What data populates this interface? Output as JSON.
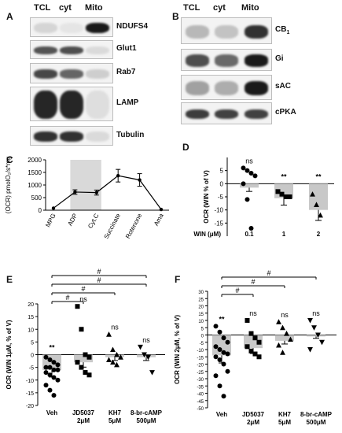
{
  "panel_labels": {
    "A": "A",
    "B": "B",
    "C": "C",
    "D": "D",
    "E": "E",
    "F": "F"
  },
  "blot_A": {
    "lanes": [
      "TCL",
      "cyt",
      "Mito"
    ],
    "proteins": [
      "NDUFS4",
      "Glut1",
      "Rab7",
      "LAMP",
      "Tubulin"
    ],
    "intensity": [
      [
        0.12,
        0.05,
        0.95
      ],
      [
        0.7,
        0.72,
        0.1
      ],
      [
        0.75,
        0.62,
        0.15
      ],
      [
        0.9,
        0.9,
        0.08
      ],
      [
        0.85,
        0.85,
        0.1
      ]
    ]
  },
  "blot_B": {
    "lanes": [
      "TCL",
      "cyt",
      "Mito"
    ],
    "proteins": [
      "CB",
      "Gi",
      "sAC",
      "cPKA"
    ],
    "sub": [
      "1",
      "",
      "",
      ""
    ],
    "intensity": [
      [
        0.25,
        0.2,
        0.85
      ],
      [
        0.72,
        0.6,
        0.95
      ],
      [
        0.35,
        0.3,
        0.95
      ],
      [
        0.8,
        0.78,
        0.78
      ]
    ]
  },
  "chart_data": [
    {
      "panel": "C",
      "type": "line",
      "ylabel": "(OCR) pmolO₂/s*mg",
      "categories": [
        "MPG",
        "ADP",
        "Cyt.C",
        "Succinate",
        "Rotenone",
        "Ama"
      ],
      "values": [
        80,
        720,
        700,
        1370,
        1200,
        30
      ],
      "errors": [
        0,
        90,
        100,
        250,
        250,
        0
      ],
      "ylim": [
        0,
        2000
      ],
      "yticks": [
        "0",
        "500",
        "1000",
        "1500",
        "2000"
      ],
      "highlight": [
        "ADP",
        "Cyt.C"
      ]
    },
    {
      "panel": "D",
      "type": "bar",
      "ylabel": "OCR (WIN % of V)",
      "xlabel": "WIN (μM)",
      "categories": [
        "0.1",
        "1",
        "2"
      ],
      "values": [
        -1.5,
        -5.5,
        -10
      ],
      "markers": [
        "circle",
        "square",
        "triangle"
      ],
      "points": [
        [
          6,
          5,
          4,
          3,
          0,
          -6,
          -17
        ],
        [
          -3,
          -4,
          -5,
          -5
        ],
        [
          -4,
          -8,
          -12
        ]
      ],
      "sig": [
        "ns",
        "**",
        "**"
      ],
      "ylim": [
        -20,
        10
      ],
      "yticks": [
        "-15",
        "-10",
        "-5",
        "0",
        "5"
      ]
    },
    {
      "panel": "E",
      "type": "bar",
      "ylabel": "OCR (WIN 1μM, % of V)",
      "categories": [
        [
          "Veh"
        ],
        [
          "JD5037",
          "2μM"
        ],
        [
          "KH7",
          "5μM"
        ],
        [
          "8-br-cAMP",
          "500μM"
        ]
      ],
      "values": [
        -6,
        -3,
        -1,
        -1
      ],
      "markers": [
        "circle",
        "square",
        "triangle",
        "triangle-down"
      ],
      "points": [
        [
          -1,
          -2,
          -3,
          -4,
          -5,
          -5,
          -6,
          -6,
          -7,
          -8,
          -9,
          -10,
          -12,
          -14,
          -16
        ],
        [
          19,
          10,
          0,
          -1,
          -3,
          -5,
          -7,
          -8
        ],
        [
          8,
          2,
          0,
          -1,
          -2,
          -3,
          -4
        ],
        [
          3,
          0,
          -1,
          -7
        ]
      ],
      "sig": [
        "**",
        "ns",
        "ns",
        "ns"
      ],
      "brackets": [
        "#",
        "#",
        "#",
        "#"
      ],
      "ylim": [
        -20,
        20
      ],
      "yticks": [
        "-20",
        "-15",
        "-10",
        "-5",
        "0",
        "5",
        "10",
        "15",
        "20"
      ]
    },
    {
      "panel": "F",
      "type": "bar",
      "ylabel": "OCR (WIN 2μM, % of V)",
      "categories": [
        [
          "Veh"
        ],
        [
          "JD5037",
          "2μM"
        ],
        [
          "KH7",
          "5μM"
        ],
        [
          "8-br-cAMP",
          "500μM"
        ]
      ],
      "values": [
        -14,
        -9,
        -4,
        -1
      ],
      "markers": [
        "circle",
        "square",
        "triangle",
        "triangle-down"
      ],
      "points": [
        [
          6,
          2,
          -2,
          -5,
          -8,
          -10,
          -12,
          -13,
          -15,
          -17,
          -20,
          -25,
          -28,
          -35,
          -42
        ],
        [
          10,
          1,
          -2,
          -5,
          -8,
          -11,
          -13,
          -15
        ],
        [
          9,
          5,
          1,
          -3,
          -7,
          -12
        ],
        [
          10,
          5,
          0,
          -5,
          -10
        ]
      ],
      "sig": [
        "**",
        "ns",
        "ns",
        "ns"
      ],
      "brackets": [
        "#",
        "#",
        "#"
      ],
      "ylim": [
        -50,
        30
      ],
      "yticks": [
        "-50",
        "-45",
        "-40",
        "-35",
        "-30",
        "-25",
        "-20",
        "-15",
        "-10",
        "-5",
        "0",
        "5",
        "10",
        "15",
        "20",
        "25",
        "30"
      ]
    }
  ]
}
